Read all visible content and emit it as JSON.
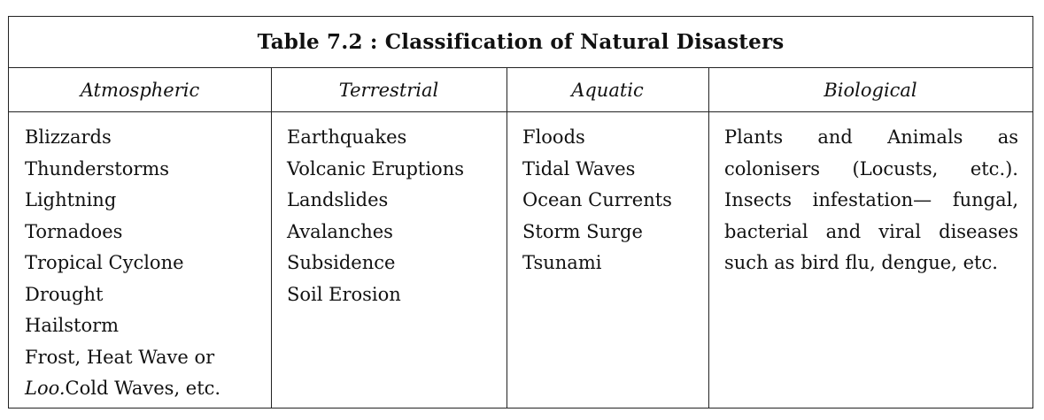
{
  "table": {
    "title": "Table 7.2 : Classification of Natural Disasters",
    "columns": [
      {
        "heading": "Atmospheric",
        "items": [
          "Blizzards",
          "Thunderstorms",
          "Lightning",
          "Tornadoes",
          "Tropical Cyclone",
          "Drought",
          "Hailstorm",
          "Frost, Heat Wave or"
        ],
        "last_item_italic": "Loo.",
        "last_item_rest": "Cold Waves, etc."
      },
      {
        "heading": "Terrestrial",
        "items": [
          "Earthquakes",
          "Volcanic Eruptions",
          "Landslides",
          "Avalanches",
          "Subsidence",
          "Soil Erosion"
        ]
      },
      {
        "heading": "Aquatic",
        "items": [
          "Floods",
          "Tidal Waves",
          "Ocean Currents",
          "Storm Surge",
          "Tsunami"
        ]
      },
      {
        "heading": "Biological",
        "text": "Plants and Animals as colonisers (Locusts, etc.). Insects infestation— fungal, bacterial and viral diseases such as bird flu, dengue, etc."
      }
    ]
  }
}
